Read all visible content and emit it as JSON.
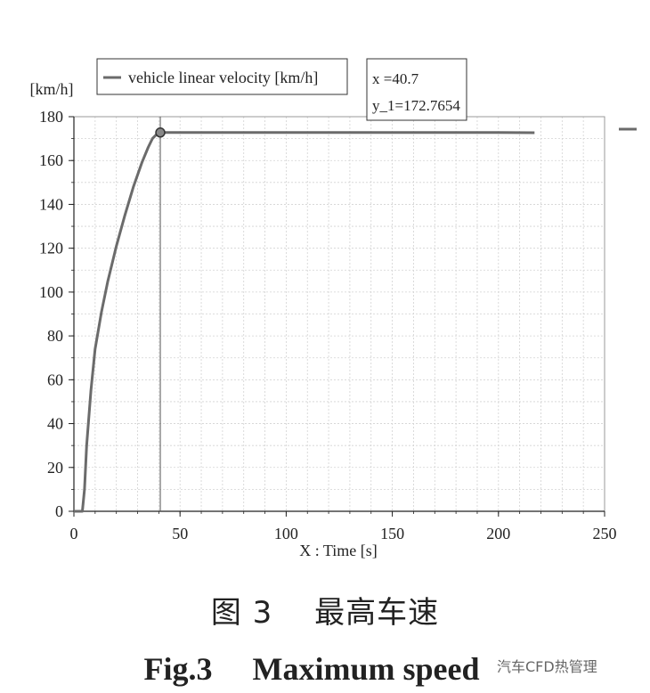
{
  "chart_data": {
    "type": "line",
    "ylabel_unit": "[km/h]",
    "xlabel": "X : Time [s]",
    "xlim": [
      0,
      250
    ],
    "ylim": [
      0,
      180
    ],
    "xticks": [
      0,
      50,
      100,
      150,
      200,
      250
    ],
    "yticks": [
      0,
      20,
      40,
      60,
      80,
      100,
      120,
      140,
      160,
      180
    ],
    "grid": true,
    "legend_position": "top-left",
    "series": [
      {
        "name": "vehicle linear velocity  [km/h]",
        "color": "#6b6b6b",
        "x": [
          0,
          4,
          5,
          6,
          8,
          10,
          13,
          16,
          20,
          24,
          28,
          32,
          35,
          37,
          39,
          40.7,
          60,
          100,
          150,
          200,
          217
        ],
        "y": [
          0,
          0,
          10,
          30,
          55,
          74,
          91,
          105,
          121,
          135,
          148,
          159,
          166,
          170,
          172,
          172.7654,
          172.77,
          172.77,
          172.77,
          172.77,
          172.7
        ]
      }
    ],
    "cursor": {
      "x": 40.7,
      "y": 172.7654,
      "label_x": "x   =40.7",
      "label_y": "y_1=172.7654"
    }
  },
  "caption_cn": "图 3　 最高车速",
  "caption_en": "Fig.3　 Maximum speed",
  "watermark": "汽车CFD热管理"
}
